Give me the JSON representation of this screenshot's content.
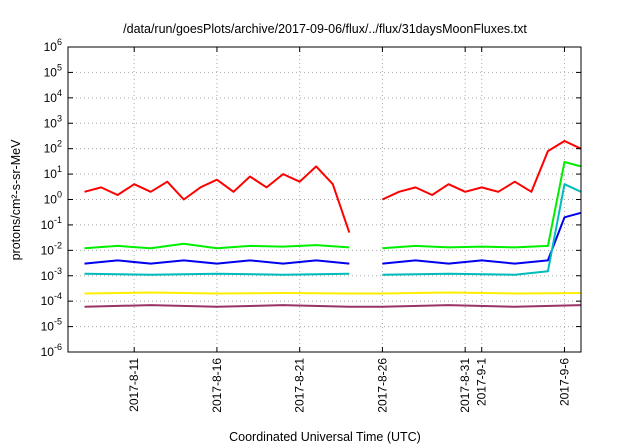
{
  "chart_data": {
    "type": "line",
    "title": "/data/run/goesPlots/archive/2017-09-06/flux/../flux/31daysMoonFluxes.txt",
    "xlabel": "Coordinated Universal Time (UTC)",
    "ylabel": "protons/cm²-s-sr-MeV",
    "y_scale": "log",
    "ylim": [
      1e-06,
      1000000.0
    ],
    "y_ticks": [
      {
        "base": "10",
        "exp": "-6",
        "value": 1e-06
      },
      {
        "base": "10",
        "exp": "-5",
        "value": 1e-05
      },
      {
        "base": "10",
        "exp": "-4",
        "value": 0.0001
      },
      {
        "base": "10",
        "exp": "-3",
        "value": 0.001
      },
      {
        "base": "10",
        "exp": "-2",
        "value": 0.01
      },
      {
        "base": "10",
        "exp": "-1",
        "value": 0.1
      },
      {
        "base": "10",
        "exp": "0",
        "value": 1
      },
      {
        "base": "10",
        "exp": "1",
        "value": 10
      },
      {
        "base": "10",
        "exp": "2",
        "value": 100
      },
      {
        "base": "10",
        "exp": "3",
        "value": 1000
      },
      {
        "base": "10",
        "exp": "4",
        "value": 10000
      },
      {
        "base": "10",
        "exp": "5",
        "value": 100000
      },
      {
        "base": "10",
        "exp": "6",
        "value": 1000000
      }
    ],
    "x_ticks": [
      "2017-8-11",
      "2017-8-16",
      "2017-8-21",
      "2017-8-26",
      "2017-8-31",
      "2017-9-1",
      "2017-9-6"
    ],
    "xlim": [
      "2017-08-07T00:00",
      "2017-09-07T00:00"
    ],
    "grid": true,
    "series": [
      {
        "color": "#ff0000",
        "x": [
          "2017-08-08",
          "2017-08-09",
          "2017-08-10",
          "2017-08-11",
          "2017-08-12",
          "2017-08-13",
          "2017-08-14",
          "2017-08-15",
          "2017-08-16",
          "2017-08-17",
          "2017-08-18",
          "2017-08-19",
          "2017-08-20",
          "2017-08-21",
          "2017-08-22",
          "2017-08-23",
          "2017-08-24",
          "2017-08-25",
          "2017-08-26",
          "2017-08-27",
          "2017-08-28",
          "2017-08-29",
          "2017-08-30",
          "2017-08-31",
          "2017-09-01",
          "2017-09-02",
          "2017-09-03",
          "2017-09-04",
          "2017-09-05",
          "2017-09-06",
          "2017-09-07"
        ],
        "y": [
          2,
          3,
          1.5,
          4,
          2,
          5,
          1,
          3,
          6,
          2,
          8,
          3,
          10,
          5,
          20,
          4,
          0.05,
          null,
          1,
          2,
          3,
          1.5,
          4,
          2,
          3,
          2,
          5,
          2,
          80,
          200,
          100
        ]
      },
      {
        "color": "#00ee00",
        "x": [
          "2017-08-08",
          "2017-08-10",
          "2017-08-12",
          "2017-08-14",
          "2017-08-16",
          "2017-08-18",
          "2017-08-20",
          "2017-08-22",
          "2017-08-24",
          "2017-08-25",
          "2017-08-26",
          "2017-08-28",
          "2017-08-30",
          "2017-09-01",
          "2017-09-03",
          "2017-09-05",
          "2017-09-06",
          "2017-09-07"
        ],
        "y": [
          0.012,
          0.015,
          0.012,
          0.018,
          0.012,
          0.015,
          0.014,
          0.016,
          0.013,
          null,
          0.012,
          0.015,
          0.013,
          0.014,
          0.013,
          0.015,
          30,
          20
        ]
      },
      {
        "color": "#0000ee",
        "x": [
          "2017-08-08",
          "2017-08-10",
          "2017-08-12",
          "2017-08-14",
          "2017-08-16",
          "2017-08-18",
          "2017-08-20",
          "2017-08-22",
          "2017-08-24",
          "2017-08-25",
          "2017-08-26",
          "2017-08-28",
          "2017-08-30",
          "2017-09-01",
          "2017-09-03",
          "2017-09-05",
          "2017-09-06",
          "2017-09-07"
        ],
        "y": [
          0.003,
          0.004,
          0.003,
          0.004,
          0.003,
          0.004,
          0.003,
          0.004,
          0.003,
          null,
          0.003,
          0.004,
          0.003,
          0.004,
          0.003,
          0.004,
          0.2,
          0.3
        ]
      },
      {
        "color": "#00bbbb",
        "x": [
          "2017-08-08",
          "2017-08-12",
          "2017-08-16",
          "2017-08-20",
          "2017-08-24",
          "2017-08-25",
          "2017-08-26",
          "2017-08-30",
          "2017-09-03",
          "2017-09-05",
          "2017-09-06",
          "2017-09-07"
        ],
        "y": [
          0.0012,
          0.0011,
          0.0012,
          0.0011,
          0.0012,
          null,
          0.0011,
          0.0012,
          0.0011,
          0.0015,
          4,
          2
        ]
      },
      {
        "color": "#ffee00",
        "x": [
          "2017-08-08",
          "2017-08-12",
          "2017-08-16",
          "2017-08-20",
          "2017-08-24",
          "2017-08-26",
          "2017-08-30",
          "2017-09-03",
          "2017-09-07"
        ],
        "y": [
          0.0002,
          0.00022,
          0.0002,
          0.00021,
          0.0002,
          0.0002,
          0.00022,
          0.0002,
          0.00021
        ]
      },
      {
        "color": "#993366",
        "x": [
          "2017-08-08",
          "2017-08-12",
          "2017-08-16",
          "2017-08-20",
          "2017-08-24",
          "2017-08-26",
          "2017-08-30",
          "2017-09-03",
          "2017-09-07"
        ],
        "y": [
          6e-05,
          7e-05,
          6e-05,
          7e-05,
          6e-05,
          6e-05,
          7e-05,
          6e-05,
          7e-05
        ]
      }
    ]
  }
}
